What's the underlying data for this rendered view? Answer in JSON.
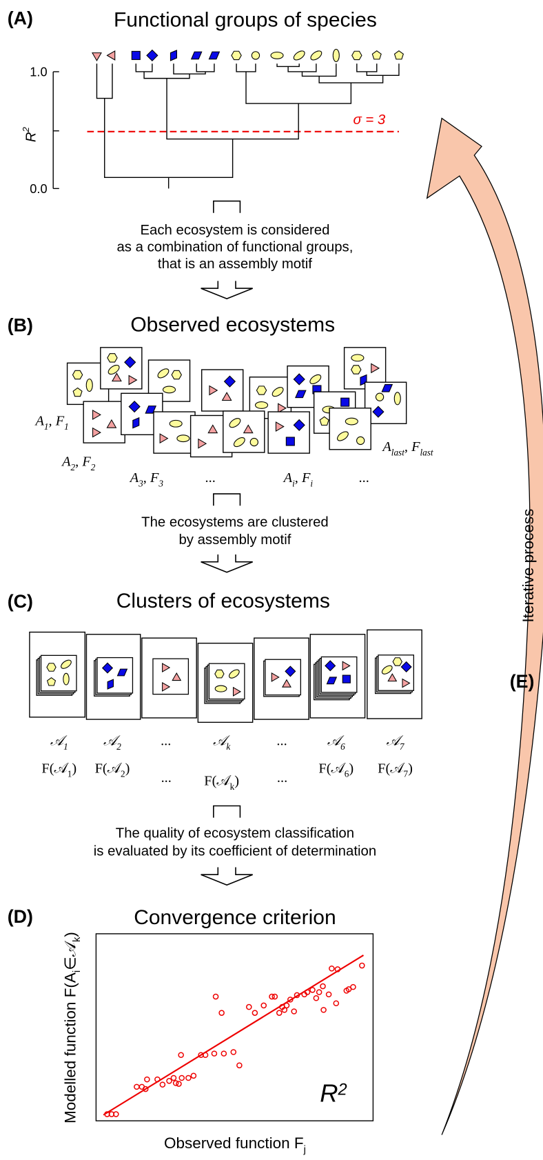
{
  "panel_a": {
    "label": "(A)",
    "title": "Functional groups of species",
    "y_axis_label": [
      {
        "t": "R",
        "sup": "2"
      }
    ],
    "yticks": [
      "1.0",
      "0.0"
    ],
    "threshold_label": "σ = 3",
    "caption": [
      "Each ecosystem is considered",
      "as a combination of functional groups,",
      "that is an assembly motif"
    ]
  },
  "panel_b": {
    "label": "(B)",
    "title": "Observed ecosystems",
    "ecosystem_labels": [
      [
        {
          "t": "A",
          "sub": "1"
        },
        {
          "t": ", "
        },
        {
          "t": "F",
          "sub": "1"
        }
      ],
      [
        {
          "t": "A",
          "sub": "2"
        },
        {
          "t": ", "
        },
        {
          "t": "F",
          "sub": "2"
        }
      ],
      [
        {
          "t": "A",
          "sub": "3"
        },
        {
          "t": ", "
        },
        {
          "t": "F",
          "sub": "3"
        }
      ],
      [
        {
          "t": "..."
        }
      ],
      [
        {
          "t": "A",
          "sub": "i"
        },
        {
          "t": ", "
        },
        {
          "t": "F",
          "sub": "i"
        }
      ],
      [
        {
          "t": "..."
        }
      ],
      [
        {
          "t": "A",
          "sub": "last"
        },
        {
          "t": ", "
        },
        {
          "t": "F",
          "sub": "last"
        }
      ]
    ],
    "caption": [
      "The ecosystems are clustered",
      "by assembly motif"
    ]
  },
  "panel_c": {
    "label": "(C)",
    "title": "Clusters of ecosystems",
    "clusters": [
      {
        "motif": [
          {
            "t": "𝒜",
            "sub": "1"
          }
        ],
        "function": [
          {
            "t": "F(𝒜",
            "sub": "1"
          },
          {
            "t": ")"
          }
        ]
      },
      {
        "motif": [
          {
            "t": "𝒜",
            "sub": "2"
          }
        ],
        "function": [
          {
            "t": "F(𝒜",
            "sub": "2"
          },
          {
            "t": ")"
          }
        ]
      },
      {
        "motif": [
          {
            "t": "..."
          }
        ],
        "function": [
          {
            "t": "..."
          }
        ]
      },
      {
        "motif": [
          {
            "t": "𝒜",
            "sub": "k"
          }
        ],
        "function": [
          {
            "t": "F(𝒜",
            "sub": "k"
          },
          {
            "t": ")"
          }
        ]
      },
      {
        "motif": [
          {
            "t": "..."
          }
        ],
        "function": [
          {
            "t": "..."
          }
        ]
      },
      {
        "motif": [
          {
            "t": "𝒜",
            "sub": "6"
          }
        ],
        "function": [
          {
            "t": "F(𝒜",
            "sub": "6"
          },
          {
            "t": ")"
          }
        ]
      },
      {
        "motif": [
          {
            "t": "𝒜",
            "sub": "7"
          }
        ],
        "function": [
          {
            "t": "F(𝒜",
            "sub": "7"
          },
          {
            "t": ")"
          }
        ]
      }
    ],
    "caption": [
      "The quality of ecosystem classification",
      "is evaluated by its coefficient of determination"
    ]
  },
  "panel_d": {
    "label": "(D)",
    "title": "Convergence criterion",
    "y_axis_label": [
      {
        "t": "Modelled function F(A",
        "sub": "i"
      },
      {
        "t": "∈𝒜",
        "sub": "k"
      },
      {
        "t": ")"
      }
    ],
    "x_axis_label": [
      {
        "t": "Observed function F",
        "sub": "j"
      }
    ],
    "statistic": [
      {
        "t": "R",
        "sup": "2"
      }
    ]
  },
  "panel_e": {
    "label": "(E)",
    "text": "Iterative process"
  }
}
